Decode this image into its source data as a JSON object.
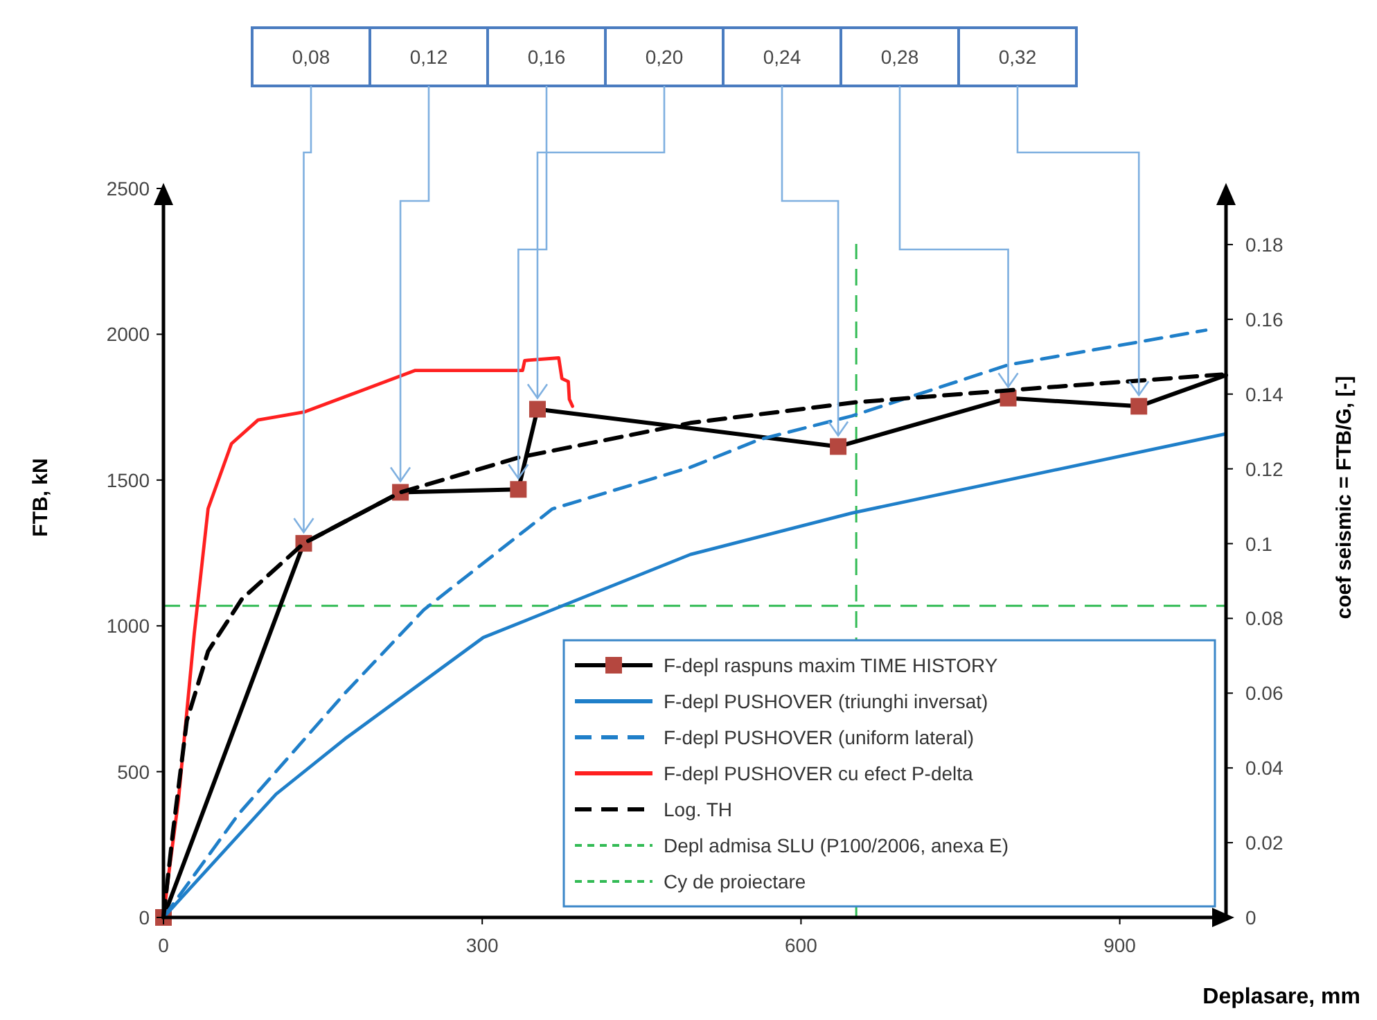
{
  "chart_data": {
    "type": "line",
    "xlabel": "Deplasare, mm",
    "ylabel": "FTB, kN",
    "y2label": "coef seismic = FTB/G, [-]",
    "xlim": [
      0,
      1000
    ],
    "xticks": [
      0,
      300,
      600,
      900
    ],
    "ylim": [
      0,
      2500
    ],
    "yticks": [
      0,
      500,
      1000,
      1500,
      2000,
      2500
    ],
    "y2lim": [
      0,
      0.195
    ],
    "y2ticks": [
      0,
      0.02,
      0.04,
      0.06,
      0.08,
      0.1,
      0.12,
      0.14,
      0.16,
      0.18
    ],
    "legend": "bottom right",
    "series": [
      {
        "name": "F-depl raspuns maxim TIME HISTORY",
        "color": "#000000",
        "marker": "square",
        "colors": [
          "#b5473f",
          "#b5473f",
          "#b5473f",
          "#b5473f",
          "#b5473f",
          "#b5473f",
          "#b5473f",
          "#b5473f",
          null
        ],
        "x": [
          0,
          132,
          223,
          334,
          352,
          635,
          795,
          918,
          1000
        ],
        "values": [
          0,
          1283,
          1458,
          1468,
          1743,
          1615,
          1781,
          1753,
          1860
        ]
      },
      {
        "name": "F-depl PUSHOVER (triunghi inversat)",
        "color": "#1f7fc9",
        "x": [
          0,
          106,
          171,
          301,
          496,
          648,
          999
        ],
        "values": [
          0,
          423,
          613,
          960,
          1245,
          1387,
          1658
        ]
      },
      {
        "name": "F-depl PUSHOVER (uniform lateral)",
        "color": "#1f7fc9",
        "line_style": "dashed",
        "x": [
          0,
          71,
          171,
          245,
          366,
          496,
          561,
          648,
          795,
          981
        ],
        "values": [
          0,
          356,
          770,
          1055,
          1401,
          1544,
          1639,
          1720,
          1895,
          2014
        ]
      },
      {
        "name": "F-depl PUSHOVER cu efect P-delta",
        "color": "#ff2020",
        "x": [
          0,
          5,
          14,
          29,
          42,
          64,
          89,
          133,
          185,
          237,
          338,
          340,
          372,
          375,
          381,
          382,
          385
        ],
        "values": [
          0,
          150,
          400,
          974,
          1402,
          1625,
          1706,
          1734,
          1805,
          1876,
          1876,
          1910,
          1919,
          1848,
          1838,
          1777,
          1753
        ]
      },
      {
        "name": "Log. TH",
        "color": "#000000",
        "line_style": "dashed",
        "x": [
          0,
          9,
          22,
          42,
          74,
          132,
          223,
          334,
          496,
          652,
          821,
          996
        ],
        "values": [
          0,
          295,
          675,
          913,
          1093,
          1283,
          1458,
          1577,
          1696,
          1767,
          1815,
          1862
        ]
      }
    ],
    "ref_lines": [
      {
        "axis": "x",
        "value": 652,
        "label": "Depl admisa SLU (P100/2006, anexa E)",
        "color": "#33bb55",
        "line_style": "dashed"
      },
      {
        "axis": "y",
        "value": 1069,
        "label": "Cy de proiectare",
        "color": "#33bb55",
        "line_style": "dashed"
      }
    ],
    "annotations": [
      {
        "text": "0,08",
        "x": 132,
        "y": 1283
      },
      {
        "text": "0,12",
        "x": 223,
        "y": 1458
      },
      {
        "text": "0,16",
        "x": 334,
        "y": 1468
      },
      {
        "text": "0,20",
        "x": 352,
        "y": 1743
      },
      {
        "text": "0,24",
        "x": 635,
        "y": 1615
      },
      {
        "text": "0,28",
        "x": 795,
        "y": 1781
      },
      {
        "text": "0,32",
        "x": 918,
        "y": 1753
      }
    ]
  }
}
